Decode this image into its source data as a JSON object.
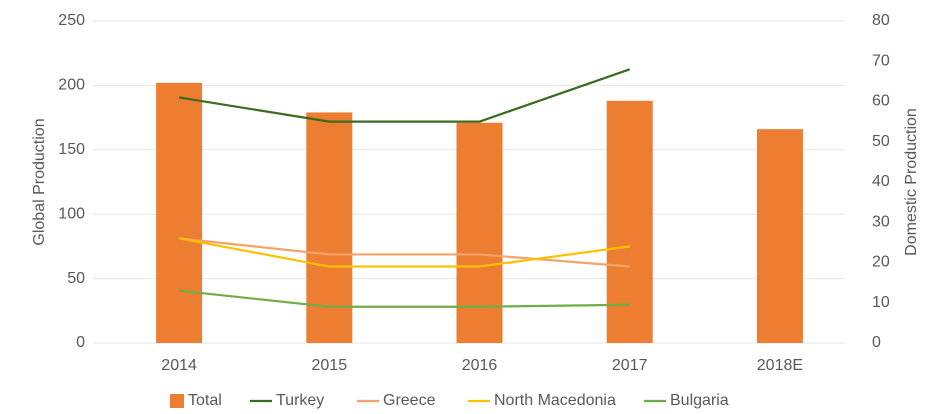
{
  "chart_data": {
    "type": "bar_line",
    "categories": [
      "2014",
      "2015",
      "2016",
      "2017",
      "2018E"
    ],
    "ylabel": "Global Production",
    "y2label": "Domestic Production",
    "ylim": [
      0,
      250
    ],
    "yticks": [
      0,
      50,
      100,
      150,
      200,
      250
    ],
    "y2lim": [
      0,
      80
    ],
    "y2ticks": [
      0,
      10,
      20,
      30,
      40,
      50,
      60,
      70,
      80
    ],
    "grid": true,
    "series": [
      {
        "name": "Total",
        "color": "#ed7d31",
        "kind": "bar",
        "values": [
          202,
          179,
          171,
          188,
          166
        ]
      },
      {
        "name": "Turkey",
        "color": "#3a6b1f",
        "kind": "line",
        "axis": "y2",
        "values": [
          61,
          55,
          55,
          68,
          null
        ]
      },
      {
        "name": "Greece",
        "color": "#f4a36b",
        "kind": "line",
        "axis": "y2",
        "values": [
          26,
          22,
          22,
          19,
          null
        ]
      },
      {
        "name": "North Macedonia",
        "color": "#ffc000",
        "kind": "line",
        "axis": "y2",
        "values": [
          26,
          19,
          19,
          24,
          null
        ]
      },
      {
        "name": "Bulgaria",
        "color": "#70ad47",
        "kind": "line",
        "axis": "y2",
        "values": [
          13,
          9,
          9,
          9.5,
          null
        ]
      }
    ]
  }
}
